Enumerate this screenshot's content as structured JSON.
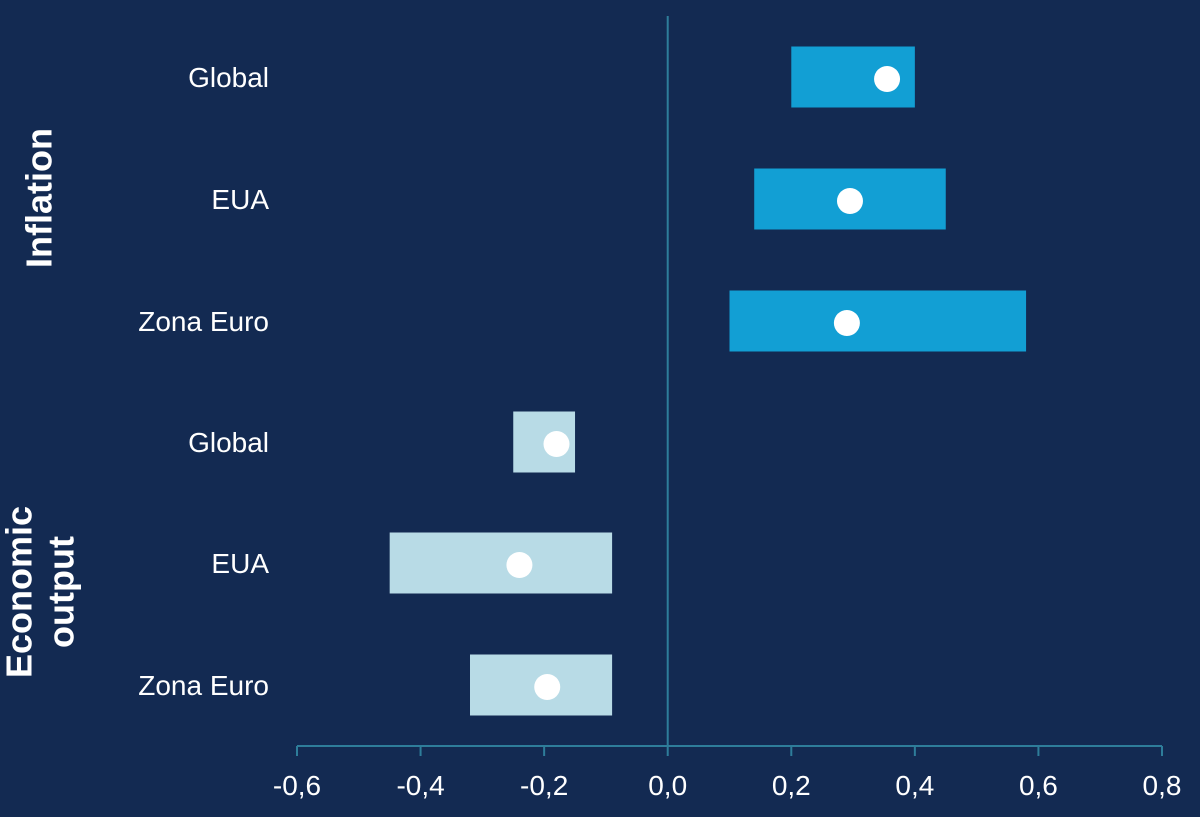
{
  "chart_data": {
    "type": "range_bar",
    "xlim": [
      -0.6,
      0.8
    ],
    "x_ticks": [
      "-0,6",
      "-0,4",
      "-0,2",
      "0,0",
      "0,2",
      "0,4",
      "0,6",
      "0,8"
    ],
    "x_tick_values": [
      -0.6,
      -0.4,
      -0.2,
      0.0,
      0.2,
      0.4,
      0.6,
      0.8
    ],
    "groups": [
      {
        "label": "Inflation",
        "color": "#129fd4",
        "rows": [
          {
            "category": "Global",
            "low": 0.2,
            "high": 0.4,
            "point": 0.355
          },
          {
            "category": "EUA",
            "low": 0.14,
            "high": 0.45,
            "point": 0.295
          },
          {
            "category": "Zona Euro",
            "low": 0.1,
            "high": 0.58,
            "point": 0.29
          }
        ]
      },
      {
        "label_lines": [
          "Economic",
          "output"
        ],
        "color": "#b8dbe6",
        "rows": [
          {
            "category": "Global",
            "low": -0.25,
            "high": -0.15,
            "point": -0.18
          },
          {
            "category": "EUA",
            "low": -0.45,
            "high": -0.09,
            "point": -0.24
          },
          {
            "category": "Zona Euro",
            "low": -0.32,
            "high": -0.09,
            "point": -0.195
          }
        ]
      }
    ],
    "point_color": "#ffffff",
    "axis_color": "#2e7d9a"
  }
}
